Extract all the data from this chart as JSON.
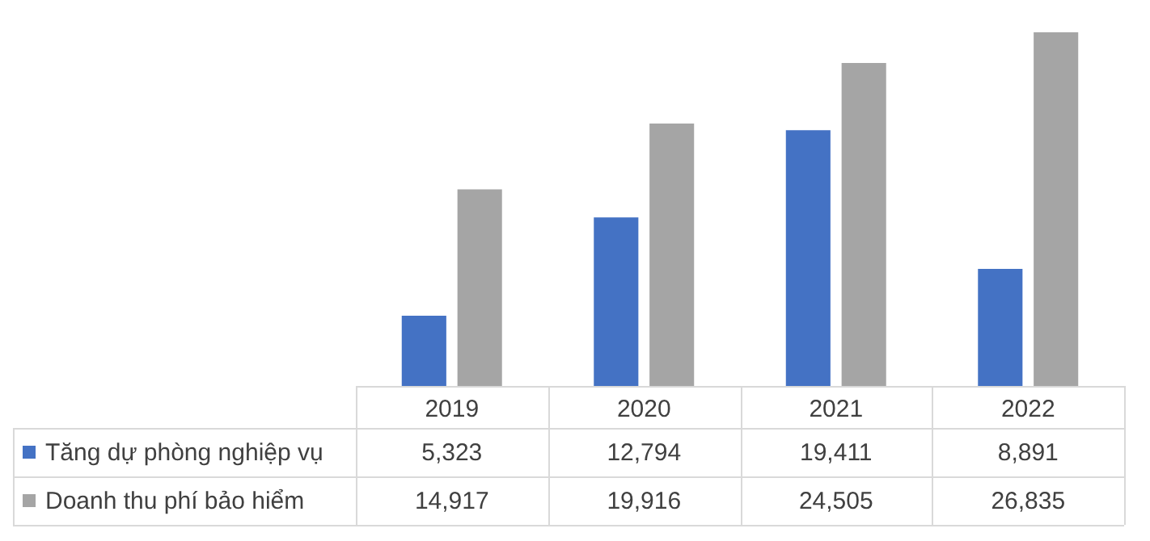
{
  "chart_data": {
    "type": "bar",
    "categories": [
      "2019",
      "2020",
      "2021",
      "2022"
    ],
    "series": [
      {
        "name": "Tăng dự phòng nghiệp vụ",
        "color": "#4472c4",
        "values": [
          5323,
          12794,
          19411,
          8891
        ],
        "value_labels": [
          "5,323",
          "12,794",
          "19,411",
          "8,891"
        ]
      },
      {
        "name": "Doanh thu phí bảo hiểm",
        "color": "#a5a5a5",
        "values": [
          14917,
          19916,
          24505,
          26835
        ],
        "value_labels": [
          "14,917",
          "19,916",
          "24,505",
          "26,835"
        ]
      }
    ],
    "legend": "bottom",
    "grid": false
  }
}
